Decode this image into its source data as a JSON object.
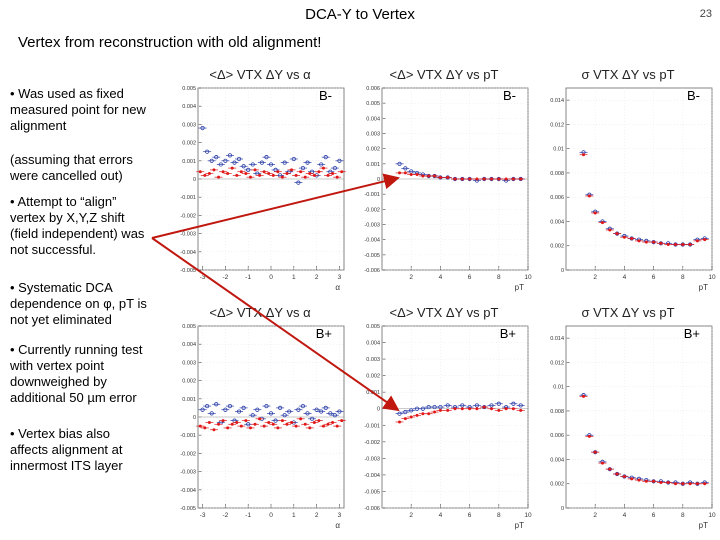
{
  "slide": {
    "title": "DCA-Y to Vertex",
    "number": "23",
    "subtitle": "Vertex from reconstruction with old alignment!"
  },
  "bullets": {
    "b1": "• Was used as fixed measured point for new alignment",
    "b1_note": "(assuming that errors were cancelled out)",
    "b2": "• Attempt to “align” vertex by X,Y,Z shift (field independent) was not successful.",
    "b3": "• Systematic DCA dependence on φ, pT is not yet eliminated",
    "b4": "• Currently running test with vertex point downweighed by additional 50 µm error",
    "b5": "• Vertex bias also affects alignment at innermost ITS layer"
  },
  "colors": {
    "series_a": "#2a3ea8",
    "series_b": "#e01818",
    "arrow": "#c0180f"
  },
  "chart_data": [
    {
      "type": "scatter",
      "title": "<Δ> VTX ΔY vs α",
      "label": "B-",
      "xlabel": "α",
      "xlim": [
        -3.2,
        3.2
      ],
      "ylim": [
        -0.005,
        0.005
      ],
      "xticks": [
        "-3",
        "-2",
        "-1",
        "0",
        "1",
        "2",
        "3"
      ],
      "yticks": [
        "-0.005",
        "-0.004",
        "-0.003",
        "-0.002",
        "-0.001",
        "0",
        "0.001",
        "0.002",
        "0.003",
        "0.004",
        "0.005"
      ],
      "series": [
        {
          "x": [
            -3.0,
            -2.8,
            -2.6,
            -2.4,
            -2.2,
            -2.0,
            -1.8,
            -1.6,
            -1.4,
            -1.2,
            -1.0,
            -0.8,
            -0.6,
            -0.4,
            -0.2,
            0.0,
            0.2,
            0.4,
            0.6,
            0.8,
            1.0,
            1.2,
            1.4,
            1.6,
            1.8,
            2.0,
            2.2,
            2.4,
            2.6,
            2.8,
            3.0
          ],
          "y": [
            0.0028,
            0.0015,
            0.001,
            0.0012,
            0.0008,
            0.001,
            0.0013,
            0.0009,
            0.0011,
            0.0007,
            0.0005,
            0.0008,
            0.0003,
            0.0009,
            0.0012,
            0.0008,
            0.0005,
            0.0002,
            0.0009,
            0.0004,
            0.0011,
            -0.0002,
            0.0006,
            0.0009,
            0.0004,
            0.0002,
            0.0008,
            0.0012,
            0.0004,
            0.0006,
            0.001
          ]
        },
        {
          "x": [
            -3.1,
            -2.9,
            -2.7,
            -2.5,
            -2.3,
            -2.1,
            -1.9,
            -1.7,
            -1.5,
            -1.3,
            -1.1,
            -0.9,
            -0.7,
            -0.5,
            -0.3,
            -0.1,
            0.1,
            0.3,
            0.5,
            0.7,
            0.9,
            1.1,
            1.3,
            1.5,
            1.7,
            1.9,
            2.1,
            2.3,
            2.5,
            2.7,
            2.9,
            3.1
          ],
          "y": [
            0.0004,
            0.0002,
            0.0003,
            0.0005,
            0.0001,
            0.0004,
            0.0003,
            0.0006,
            0.0002,
            0.0004,
            0.0003,
            0.0001,
            0.0005,
            0.0002,
            0.0004,
            0.0003,
            0.0002,
            0.0004,
            0.0001,
            0.0003,
            0.0005,
            0.0002,
            0.0004,
            0.0001,
            0.0003,
            0.0002,
            0.0004,
            0.0006,
            0.0002,
            0.0003,
            0.0001,
            0.0004
          ]
        }
      ]
    },
    {
      "type": "scatter",
      "title": "<Δ> VTX ΔY vs pT",
      "label": "B-",
      "xlabel": "pT",
      "xlim": [
        0,
        10
      ],
      "ylim": [
        -0.006,
        0.006
      ],
      "xticks": [
        "2",
        "4",
        "6",
        "8",
        "10"
      ],
      "yticks": [
        "-0.006",
        "-0.005",
        "-0.004",
        "-0.003",
        "-0.002",
        "-0.001",
        "0",
        "0.001",
        "0.002",
        "0.003",
        "0.004",
        "0.005",
        "0.006"
      ],
      "series": [
        {
          "x": [
            1.2,
            1.6,
            2.0,
            2.4,
            2.8,
            3.2,
            3.6,
            4.0,
            4.5,
            5.0,
            5.5,
            6.0,
            6.5,
            7.0,
            7.5,
            8.0,
            8.5,
            9.0,
            9.5
          ],
          "y": [
            0.001,
            0.0007,
            0.0005,
            0.0004,
            0.0003,
            0.0002,
            0.0002,
            0.0001,
            0.0001,
            0.0,
            0.0,
            0.0,
            -0.0001,
            0.0,
            0.0,
            0.0,
            -0.0001,
            0.0,
            0.0
          ]
        },
        {
          "x": [
            1.2,
            1.6,
            2.0,
            2.4,
            2.8,
            3.2,
            3.6,
            4.0,
            4.5,
            5.0,
            5.5,
            6.0,
            6.5,
            7.0,
            7.5,
            8.0,
            8.5,
            9.0,
            9.5
          ],
          "y": [
            0.0004,
            0.0004,
            0.0003,
            0.0003,
            0.0002,
            0.0002,
            0.0002,
            0.0001,
            0.0001,
            0.0,
            0.0,
            0.0,
            0.0,
            0.0,
            0.0,
            0.0,
            0.0,
            0.0,
            0.0
          ]
        }
      ]
    },
    {
      "type": "scatter",
      "title": "σ VTX ΔY vs pT",
      "label": "B-",
      "xlabel": "pT",
      "xlim": [
        0,
        10
      ],
      "ylim": [
        0,
        0.015
      ],
      "xticks": [
        "2",
        "4",
        "6",
        "8",
        "10"
      ],
      "yticks": [
        "0",
        "0.002",
        "0.004",
        "0.006",
        "0.008",
        "0.01",
        "0.012",
        "0.014"
      ],
      "series": [
        {
          "x": [
            1.2,
            1.6,
            2.0,
            2.5,
            3.0,
            3.5,
            4.0,
            4.5,
            5.0,
            5.5,
            6.0,
            6.5,
            7.0,
            7.5,
            8.0,
            8.5,
            9.0,
            9.5
          ],
          "y": [
            0.0097,
            0.0062,
            0.0048,
            0.004,
            0.0034,
            0.003,
            0.0028,
            0.0026,
            0.0025,
            0.0024,
            0.0023,
            0.0022,
            0.0022,
            0.0021,
            0.0021,
            0.0021,
            0.0025,
            0.0026
          ]
        },
        {
          "x": [
            1.2,
            1.6,
            2.0,
            2.5,
            3.0,
            3.5,
            4.0,
            4.5,
            5.0,
            5.5,
            6.0,
            6.5,
            7.0,
            7.5,
            8.0,
            8.5,
            9.0,
            9.5
          ],
          "y": [
            0.0095,
            0.0061,
            0.0047,
            0.0039,
            0.0033,
            0.003,
            0.0027,
            0.0026,
            0.0024,
            0.0023,
            0.0023,
            0.0022,
            0.0021,
            0.0021,
            0.0021,
            0.0021,
            0.0024,
            0.0025
          ]
        }
      ]
    },
    {
      "type": "scatter",
      "title": "<Δ> VTX ΔY vs α",
      "label": "B+",
      "xlabel": "α",
      "xlim": [
        -3.2,
        3.2
      ],
      "ylim": [
        -0.005,
        0.005
      ],
      "xticks": [
        "-3",
        "-2",
        "-1",
        "0",
        "1",
        "2",
        "3"
      ],
      "yticks": [
        "-0.005",
        "-0.004",
        "-0.003",
        "-0.002",
        "-0.001",
        "0",
        "0.001",
        "0.002",
        "0.003",
        "0.004",
        "0.005"
      ],
      "series": [
        {
          "x": [
            -3.0,
            -2.8,
            -2.6,
            -2.4,
            -2.2,
            -2.0,
            -1.8,
            -1.6,
            -1.4,
            -1.2,
            -1.0,
            -0.8,
            -0.6,
            -0.4,
            -0.2,
            0.0,
            0.2,
            0.4,
            0.6,
            0.8,
            1.0,
            1.2,
            1.4,
            1.6,
            1.8,
            2.0,
            2.2,
            2.4,
            2.6,
            2.8,
            3.0
          ],
          "y": [
            0.0004,
            0.0006,
            0.0002,
            0.0007,
            -0.0003,
            0.0004,
            0.0006,
            -0.0002,
            0.0003,
            0.0005,
            -0.0004,
            0.0001,
            0.0004,
            -0.0001,
            0.0006,
            0.0002,
            -0.0002,
            0.0005,
            0.0001,
            0.0003,
            -0.0003,
            0.0004,
            0.0006,
            0.0002,
            -0.0001,
            0.0004,
            0.0003,
            0.0005,
            0.0002,
            0.0001,
            0.0003
          ]
        },
        {
          "x": [
            -3.1,
            -2.9,
            -2.7,
            -2.5,
            -2.3,
            -2.1,
            -1.9,
            -1.7,
            -1.5,
            -1.3,
            -1.1,
            -0.9,
            -0.7,
            -0.5,
            -0.3,
            -0.1,
            0.1,
            0.3,
            0.5,
            0.7,
            0.9,
            1.1,
            1.3,
            1.5,
            1.7,
            1.9,
            2.1,
            2.3,
            2.5,
            2.7,
            2.9,
            3.1
          ],
          "y": [
            -0.0005,
            -0.0006,
            -0.0003,
            -0.0007,
            -0.0004,
            -0.0002,
            -0.0006,
            -0.0004,
            -0.0003,
            -0.0005,
            -0.0002,
            -0.0006,
            -0.0004,
            -0.0001,
            -0.0005,
            -0.0003,
            -0.0004,
            -0.0006,
            -0.0002,
            -0.0004,
            -0.0003,
            -0.0005,
            -0.0001,
            -0.0004,
            -0.0006,
            -0.0003,
            -0.0002,
            -0.0005,
            -0.0004,
            -0.0003,
            -0.0005,
            -0.0002
          ]
        }
      ]
    },
    {
      "type": "scatter",
      "title": "<Δ> VTX ΔY vs pT",
      "label": "B+",
      "xlabel": "pT",
      "xlim": [
        0,
        10
      ],
      "ylim": [
        -0.006,
        0.005
      ],
      "xticks": [
        "2",
        "4",
        "6",
        "8",
        "10"
      ],
      "yticks": [
        "-0.006",
        "-0.005",
        "-0.004",
        "-0.003",
        "-0.002",
        "-0.001",
        "0",
        "0.001",
        "0.002",
        "0.003",
        "0.004",
        "0.005"
      ],
      "series": [
        {
          "x": [
            1.2,
            1.6,
            2.0,
            2.4,
            2.8,
            3.2,
            3.6,
            4.0,
            4.5,
            5.0,
            5.5,
            6.0,
            6.5,
            7.0,
            7.5,
            8.0,
            8.5,
            9.0,
            9.5
          ],
          "y": [
            -0.0003,
            -0.0002,
            -0.0001,
            0.0,
            0.0,
            0.0001,
            0.0001,
            0.0001,
            0.0002,
            0.0001,
            0.0002,
            0.0001,
            0.0002,
            0.0001,
            0.0002,
            0.0003,
            0.0001,
            0.0003,
            0.0002
          ]
        },
        {
          "x": [
            1.2,
            1.6,
            2.0,
            2.4,
            2.8,
            3.2,
            3.6,
            4.0,
            4.5,
            5.0,
            5.5,
            6.0,
            6.5,
            7.0,
            7.5,
            8.0,
            8.5,
            9.0,
            9.5
          ],
          "y": [
            -0.0008,
            -0.0006,
            -0.0005,
            -0.0004,
            -0.0003,
            -0.0003,
            -0.0002,
            -0.0001,
            -0.0001,
            0.0,
            0.0,
            0.0,
            0.0,
            0.0001,
            0.0,
            -0.0001,
            0.0,
            0.0,
            -0.0001
          ]
        }
      ]
    },
    {
      "type": "scatter",
      "title": "σ VTX ΔY vs pT",
      "label": "B+",
      "xlabel": "pT",
      "xlim": [
        0,
        10
      ],
      "ylim": [
        0,
        0.015
      ],
      "xticks": [
        "2",
        "4",
        "6",
        "8",
        "10"
      ],
      "yticks": [
        "0",
        "0.002",
        "0.004",
        "0.006",
        "0.008",
        "0.01",
        "0.012",
        "0.014"
      ],
      "series": [
        {
          "x": [
            1.2,
            1.6,
            2.0,
            2.5,
            3.0,
            3.5,
            4.0,
            4.5,
            5.0,
            5.5,
            6.0,
            6.5,
            7.0,
            7.5,
            8.0,
            8.5,
            9.0,
            9.5
          ],
          "y": [
            0.0093,
            0.006,
            0.0046,
            0.0038,
            0.0032,
            0.0028,
            0.0026,
            0.0025,
            0.0024,
            0.0023,
            0.0022,
            0.0022,
            0.0021,
            0.0021,
            0.002,
            0.0021,
            0.002,
            0.0021
          ]
        },
        {
          "x": [
            1.2,
            1.6,
            2.0,
            2.5,
            3.0,
            3.5,
            4.0,
            4.5,
            5.0,
            5.5,
            6.0,
            6.5,
            7.0,
            7.5,
            8.0,
            8.5,
            9.0,
            9.5
          ],
          "y": [
            0.0092,
            0.0059,
            0.0046,
            0.0037,
            0.0032,
            0.0028,
            0.0026,
            0.0024,
            0.0023,
            0.0022,
            0.0022,
            0.0021,
            0.0021,
            0.002,
            0.002,
            0.002,
            0.002,
            0.002
          ]
        }
      ]
    }
  ]
}
